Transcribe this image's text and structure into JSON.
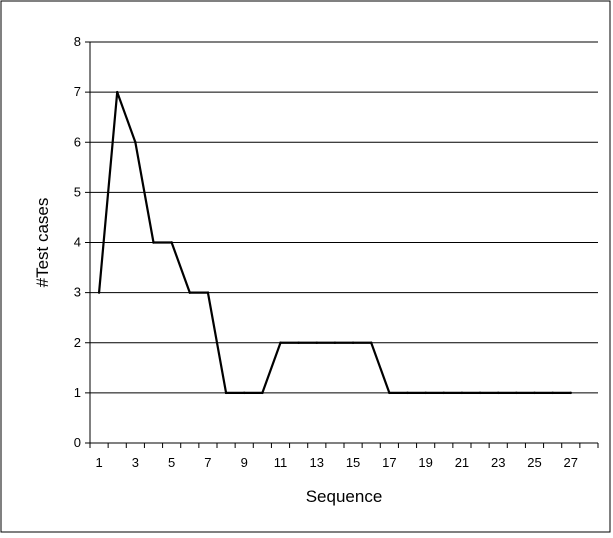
{
  "chart_data": {
    "type": "line",
    "title": "",
    "xlabel": "Sequence",
    "ylabel": "#Test cases",
    "xlim": [
      1,
      27
    ],
    "ylim": [
      0,
      8
    ],
    "x_tick_labels": [
      "1",
      "3",
      "5",
      "7",
      "9",
      "11",
      "13",
      "15",
      "17",
      "19",
      "21",
      "23",
      "25",
      "27"
    ],
    "y_tick_labels": [
      "0",
      "1",
      "2",
      "3",
      "4",
      "5",
      "6",
      "7",
      "8"
    ],
    "grid": "horizontal",
    "legend": "none",
    "series": [
      {
        "x": [
          1,
          2,
          3,
          4,
          5,
          6,
          7,
          8,
          9,
          10,
          11,
          12,
          13,
          14,
          15,
          16,
          17,
          18,
          19,
          20,
          21,
          22,
          23,
          24,
          25,
          26,
          27
        ],
        "values": [
          3,
          7,
          6,
          4,
          4,
          3,
          3,
          1,
          1,
          1,
          2,
          2,
          2,
          2,
          2,
          2,
          1,
          1,
          1,
          1,
          1,
          1,
          1,
          1,
          1,
          1,
          1
        ],
        "color": "#000000"
      }
    ]
  }
}
